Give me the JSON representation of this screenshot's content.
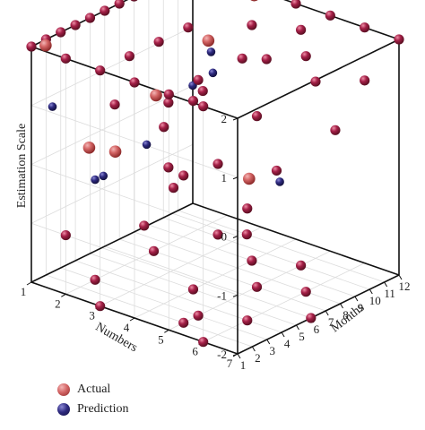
{
  "chart_data": {
    "type": "scatter",
    "axes": {
      "x": {
        "label": "Months",
        "range": [
          1,
          12
        ],
        "ticks": [
          "1",
          "2",
          "3",
          "4",
          "5",
          "6",
          "7",
          "8",
          "9",
          "10",
          "11",
          "12"
        ]
      },
      "y": {
        "label": "Numbers",
        "range": [
          1,
          7
        ],
        "ticks": [
          "1",
          "2",
          "3",
          "4",
          "5",
          "6",
          "7"
        ]
      },
      "z": {
        "label": "Estimation Scale",
        "range": [
          -2,
          2
        ],
        "ticks": [
          "-2",
          "-1",
          "0",
          "1",
          "2"
        ]
      }
    },
    "grid": true,
    "legend_position": "bottom-left",
    "series": [
      {
        "name": "Actual",
        "color": "#cd5757",
        "points": [
          [
            1.5,
            1.2,
            2.0
          ],
          [
            6.5,
            3.8,
            2.0
          ],
          [
            11.5,
            3.0,
            2.0
          ],
          [
            2.5,
            2.8,
            0.4
          ],
          [
            4.0,
            1.4,
            0.0
          ],
          [
            6.0,
            5.2,
            0.0
          ],
          [
            2.0,
            4.2,
            1.7
          ]
        ]
      },
      {
        "name": "Prediction",
        "color": "#2a2778",
        "points": [
          [
            1.5,
            1.4,
            1.0
          ],
          [
            9.5,
            2.6,
            1.2
          ],
          [
            4.0,
            5.0,
            2.0
          ],
          [
            9.5,
            4.6,
            -0.6
          ],
          [
            12.0,
            1.0,
            0.0
          ],
          [
            3.0,
            3.5,
            0.6
          ],
          [
            4.5,
            1.6,
            -0.5
          ],
          [
            3.0,
            2.0,
            -0.3
          ]
        ]
      },
      {
        "name": "",
        "color": "#9b1b3c",
        "points": [
          [
            1,
            1,
            2
          ],
          [
            2,
            1,
            2
          ],
          [
            3,
            1,
            2
          ],
          [
            4,
            1,
            2
          ],
          [
            5,
            1,
            2
          ],
          [
            6,
            1,
            2
          ],
          [
            7,
            1,
            2
          ],
          [
            8,
            1,
            2
          ],
          [
            9,
            1,
            2
          ],
          [
            10,
            1,
            2
          ],
          [
            11,
            1,
            2
          ],
          [
            12,
            1,
            2
          ],
          [
            12,
            2,
            2
          ],
          [
            12,
            3,
            2
          ],
          [
            12,
            4,
            2
          ],
          [
            12,
            5,
            2
          ],
          [
            12,
            6,
            2
          ],
          [
            12,
            7,
            2
          ],
          [
            1,
            2,
            2
          ],
          [
            1,
            3,
            2
          ],
          [
            1,
            4,
            2
          ],
          [
            1,
            5,
            2
          ],
          [
            1,
            6,
            2
          ],
          [
            3,
            3,
            2
          ],
          [
            5,
            3,
            2
          ],
          [
            7,
            3,
            2
          ],
          [
            9,
            4,
            2
          ],
          [
            3,
            5,
            2
          ],
          [
            6,
            5,
            2
          ],
          [
            8,
            6,
            2
          ],
          [
            10,
            5,
            2
          ],
          [
            2,
            3,
            1.3
          ],
          [
            3,
            4,
            1.0
          ],
          [
            5,
            4,
            1.2
          ],
          [
            7,
            5,
            0.9
          ],
          [
            10,
            4,
            1.3
          ],
          [
            11,
            5,
            1.0
          ],
          [
            12,
            6,
            1.1
          ],
          [
            8,
            3,
            0.8
          ],
          [
            2,
            5,
            0.5
          ],
          [
            6,
            6,
            0.3
          ],
          [
            8,
            2,
            0.4
          ],
          [
            10,
            6,
            0.5
          ],
          [
            4,
            6,
            -0.1
          ],
          [
            2,
            6,
            0.9
          ],
          [
            1,
            2,
            -1.0
          ],
          [
            2,
            6,
            -0.3
          ],
          [
            4,
            3,
            -1.0
          ],
          [
            6,
            3,
            -0.6
          ],
          [
            8,
            2,
            -0.7
          ],
          [
            1,
            3,
            -2
          ],
          [
            3,
            5,
            -2
          ],
          [
            5,
            4,
            -2
          ],
          [
            7,
            5,
            -2
          ],
          [
            9,
            4,
            -2
          ],
          [
            11,
            3,
            -2
          ],
          [
            2,
            5,
            -2
          ],
          [
            4,
            6,
            -2
          ],
          [
            6,
            7,
            -2
          ],
          [
            8,
            6,
            -2
          ],
          [
            10,
            5,
            -2
          ],
          [
            1,
            6,
            -2
          ],
          [
            7,
            2,
            -2
          ],
          [
            3,
            2,
            -2
          ]
        ]
      }
    ]
  },
  "legend": {
    "items": [
      {
        "label": "Actual",
        "color": "#cd5757"
      },
      {
        "label": "Prediction",
        "color": "#2a2778"
      }
    ]
  }
}
